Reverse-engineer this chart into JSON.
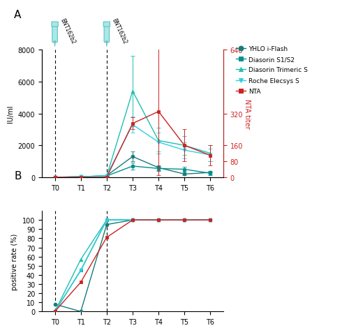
{
  "timepoints": [
    "T0",
    "T1",
    "T2",
    "T3",
    "T4",
    "T5",
    "T6"
  ],
  "x": [
    0,
    1,
    2,
    3,
    4,
    5,
    6
  ],
  "panel_a": {
    "yhlo": {
      "y": [
        0,
        30,
        100,
        1300,
        600,
        200,
        300
      ],
      "yerr": [
        5,
        10,
        30,
        300,
        150,
        80,
        100
      ],
      "color": "#1a7a7a",
      "marker": "o",
      "label": "YHLO i-Flash"
    },
    "diasorin_s1s2": {
      "y": [
        0,
        30,
        80,
        700,
        550,
        500,
        250
      ],
      "yerr": [
        5,
        10,
        20,
        200,
        150,
        150,
        100
      ],
      "color": "#009090",
      "marker": "s",
      "label": "Diasorin S1/S2"
    },
    "diasorin_trimeric": {
      "y": [
        0,
        30,
        80,
        5400,
        2300,
        2000,
        1500
      ],
      "yerr": [
        5,
        10,
        20,
        2200,
        800,
        600,
        500
      ],
      "color": "#20c0b0",
      "marker": "^",
      "label": "Diasorin Trimeric S"
    },
    "roche": {
      "y": [
        0,
        30,
        100,
        3300,
        2200,
        1700,
        1400
      ],
      "yerr": [
        5,
        10,
        30,
        500,
        600,
        500,
        400
      ],
      "color": "#30d0e0",
      "marker": "v",
      "label": "Roche Elecsys S"
    },
    "nta": {
      "y": [
        0,
        0,
        0,
        270,
        330,
        160,
        110
      ],
      "yerr": [
        5,
        5,
        5,
        30,
        320,
        80,
        50
      ],
      "color": "#cc2222",
      "marker": "s",
      "label": "NTA"
    },
    "ylim": [
      0,
      8000
    ],
    "yticks_left": [
      0,
      2000,
      4000,
      6000,
      8000
    ],
    "ylim_right": [
      0,
      640
    ],
    "yticks_right": [
      0,
      80,
      160,
      320,
      640
    ],
    "ylabel_left": "IU/ml",
    "ylabel_right": "NTA titer"
  },
  "panel_b": {
    "yhlo": {
      "y": [
        8,
        0,
        95,
        100,
        100,
        100,
        100
      ],
      "color": "#1a7a7a",
      "marker": "o"
    },
    "diasorin_s1s2": {
      "y": [
        0,
        45,
        100,
        100,
        100,
        100,
        100
      ],
      "color": "#009090",
      "marker": "s"
    },
    "diasorin_trimeric": {
      "y": [
        0,
        57,
        100,
        100,
        100,
        100,
        100
      ],
      "color": "#20c0b0",
      "marker": "^"
    },
    "roche": {
      "y": [
        0,
        45,
        100,
        100,
        100,
        100,
        100
      ],
      "color": "#30d0e0",
      "marker": "v"
    },
    "nta": {
      "y": [
        0,
        32,
        81,
        100,
        100,
        100,
        100
      ],
      "color": "#cc2222",
      "marker": "s"
    },
    "ylim": [
      0,
      110
    ],
    "yticks": [
      0,
      10,
      20,
      30,
      40,
      50,
      60,
      70,
      80,
      90,
      100
    ],
    "ylabel": "positive rate (%)"
  },
  "dashed_lines": [
    0,
    2
  ],
  "background_color": "#ffffff",
  "figure_label_a": "A",
  "figure_label_b": "B",
  "vaccination_label": "BNT162b2",
  "legend_labels": [
    "YHLO i-Flash",
    "Diasorin S1/S2",
    "Diasorin Trimeric S",
    "Roche Elecsys S",
    "NTA"
  ],
  "legend_colors": [
    "#1a7a7a",
    "#009090",
    "#20c0b0",
    "#30d0e0",
    "#cc2222"
  ],
  "legend_markers": [
    "o",
    "s",
    "^",
    "v",
    "s"
  ]
}
